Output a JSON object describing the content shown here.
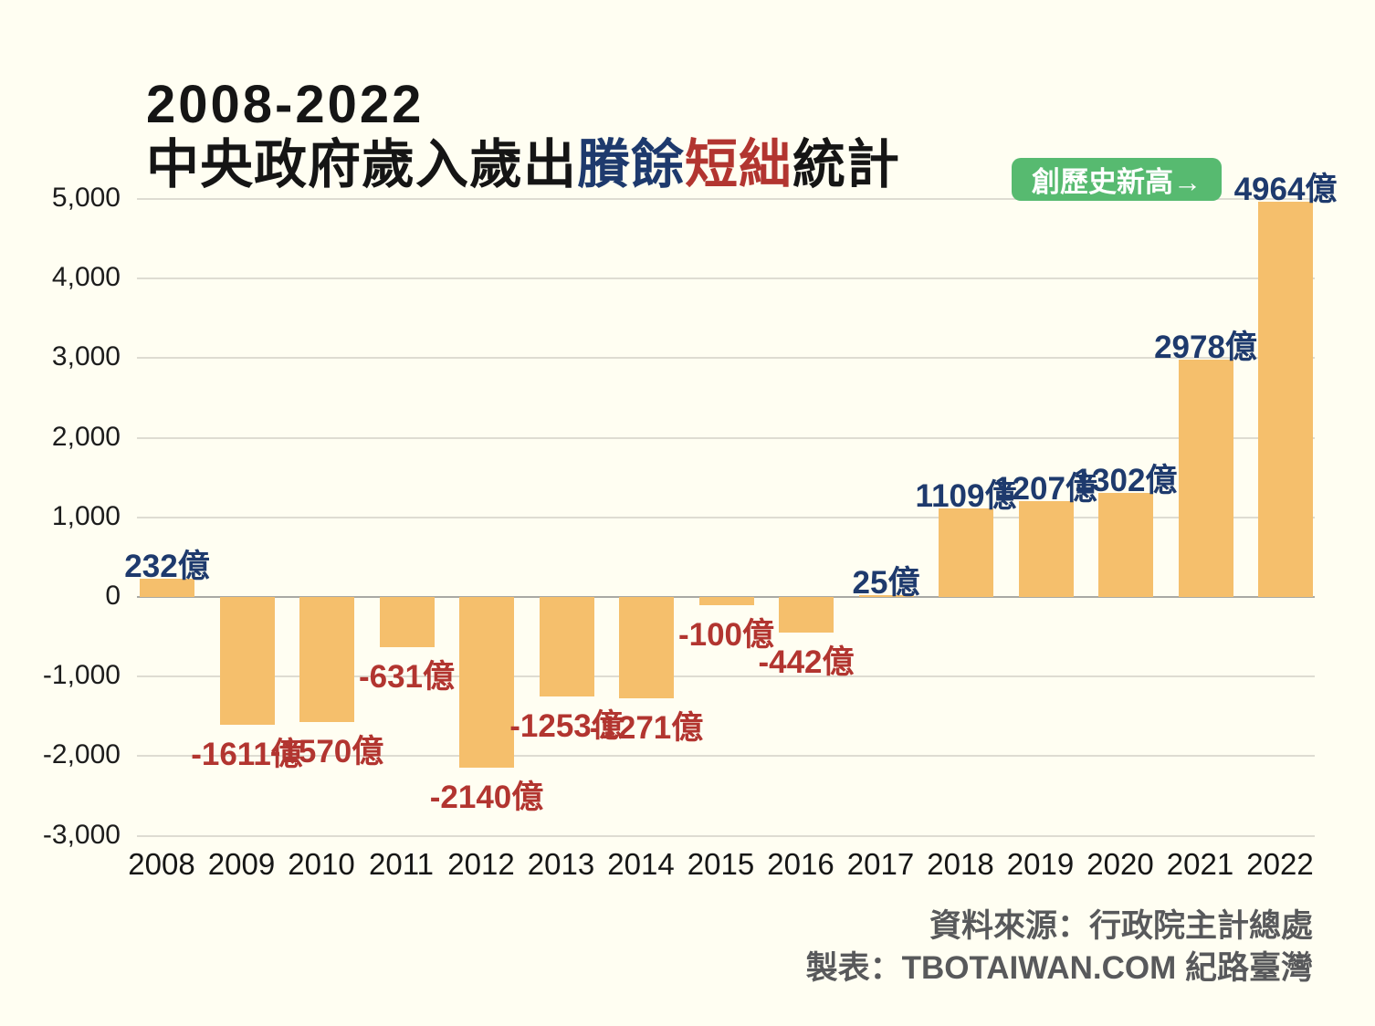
{
  "title": {
    "line1": "2008-2022",
    "line2_prefix": "中央政府歲入歲出",
    "line2_surplus": "賸餘",
    "line2_deficit": "短絀",
    "line2_suffix": "統計",
    "surplus_color": "#1e3a6d",
    "deficit_color": "#b23530"
  },
  "badge": {
    "label": "創歷史新高→",
    "background_color": "#57ba70",
    "text_color": "#ffffff"
  },
  "chart_data": {
    "type": "bar",
    "title": "2008-2022 中央政府歲入歲出賸餘短絀統計",
    "xlabel": "",
    "ylabel": "",
    "unit": "億",
    "categories": [
      "2008",
      "2009",
      "2010",
      "2011",
      "2012",
      "2013",
      "2014",
      "2015",
      "2016",
      "2017",
      "2018",
      "2019",
      "2020",
      "2021",
      "2022"
    ],
    "values": [
      232,
      -1611,
      -1570,
      -631,
      -2140,
      -1253,
      -1271,
      -100,
      -442,
      25,
      1109,
      1207,
      1302,
      2978,
      4964
    ],
    "value_labels": [
      "232億",
      "-1611億",
      "-1570億",
      "-631億",
      "-2140億",
      "-1253億",
      "-1271億",
      "-100億",
      "-442億",
      "25億",
      "1109億",
      "1207億",
      "1302億",
      "2978億",
      "4964億"
    ],
    "ylim": [
      -3000,
      5000
    ],
    "ytick_step": 1000,
    "ytick_labels": [
      "5,000",
      "4,000",
      "3,000",
      "2,000",
      "1,000",
      "0",
      "-1,000",
      "-2,000",
      "-3,000"
    ],
    "grid": "horizontal",
    "legend": "none",
    "bar_color": "#f5bf6c",
    "positive_label_color": "#1e3a6d",
    "negative_label_color": "#b23530",
    "annotation": {
      "text": "創歷史新高→",
      "target_category": "2022",
      "target_value_label": "4964億"
    }
  },
  "source": {
    "line1": "資料來源：行政院主計總處",
    "line2": "製表：TBOTAIWAN.COM 紀路臺灣"
  }
}
